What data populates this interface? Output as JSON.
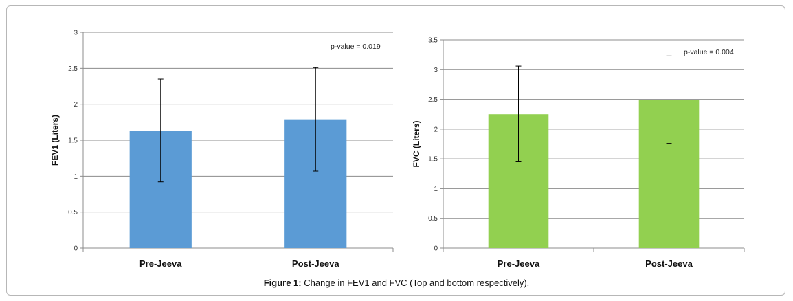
{
  "caption": {
    "label": "Figure 1:",
    "text": "Change in FEV1 and FVC (Top and bottom respectively)."
  },
  "chart_data": [
    {
      "type": "bar",
      "ylabel": "FEV1 (Liters)",
      "xlabel": "",
      "categories": [
        "Pre-Jeeva",
        "Post-Jeeva"
      ],
      "values": [
        1.63,
        1.79
      ],
      "error_low": [
        0.92,
        1.07
      ],
      "error_high": [
        2.35,
        2.51
      ],
      "ylim": [
        0,
        3
      ],
      "yticks": [
        "0",
        "0.5",
        "1",
        "1.5",
        "2",
        "2.5",
        "3"
      ],
      "annotation": "p-value = 0.019",
      "color": "#5b9bd5",
      "grid": true
    },
    {
      "type": "bar",
      "ylabel": "FVC (Liters)",
      "xlabel": "",
      "categories": [
        "Pre-Jeeva",
        "Post-Jeeva"
      ],
      "values": [
        2.25,
        2.49
      ],
      "error_low": [
        1.45,
        1.76
      ],
      "error_high": [
        3.06,
        3.23
      ],
      "ylim": [
        0,
        3.5
      ],
      "yticks": [
        "0",
        "0.5",
        "1",
        "1.5",
        "2",
        "2.5",
        "3",
        "3.5"
      ],
      "annotation": "p-value = 0.004",
      "color": "#92d050",
      "grid": true
    }
  ]
}
